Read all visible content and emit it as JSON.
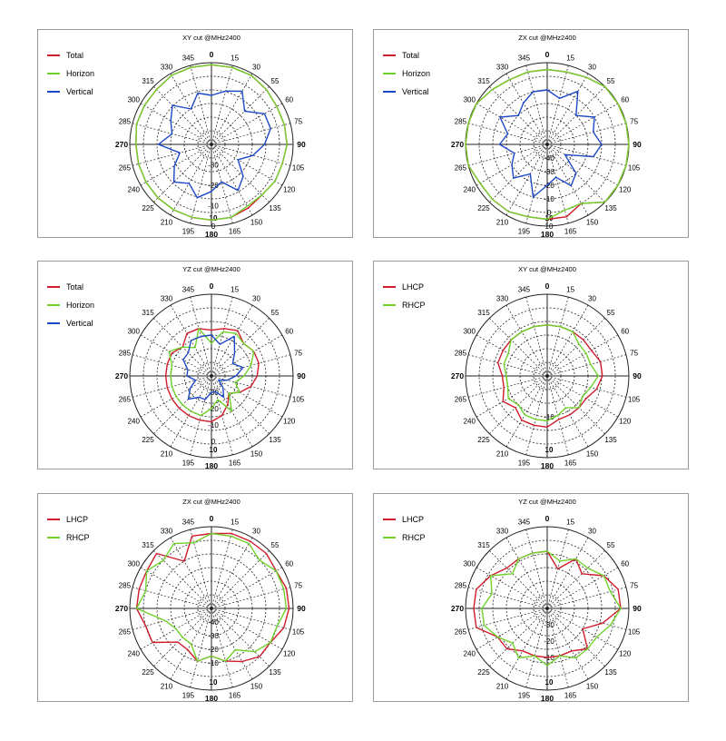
{
  "colors": {
    "red": "#d01c2c",
    "green": "#6fd22a",
    "blue": "#1c48c8"
  },
  "chart_data": [
    {
      "type": "polar-line",
      "title": "XY cut @MHz2400",
      "angle_labels": [
        "0",
        "15",
        "30",
        "55",
        "60",
        "75",
        "90",
        "105",
        "120",
        "135",
        "150",
        "165",
        "180",
        "195",
        "210",
        "225",
        "240",
        "265",
        "270",
        "285",
        "300",
        "315",
        "330",
        "345"
      ],
      "radial_labels": [
        "0",
        "-10",
        "-20",
        "-30"
      ],
      "radial_range": [
        -40,
        0
      ],
      "bottom_label": "10",
      "series": [
        {
          "name": "Total",
          "color": "red",
          "values": [
            -1,
            -1,
            -1,
            -2,
            -3,
            -3,
            -3,
            -4,
            -4,
            -5,
            -4,
            -3,
            -3,
            -3,
            -3,
            -3,
            -3,
            -3,
            -3,
            -2,
            -2,
            -2,
            -1,
            -1
          ]
        },
        {
          "name": "Horizon",
          "color": "green",
          "values": [
            -1,
            -1,
            -1,
            -2,
            -3,
            -3,
            -3,
            -4,
            -4,
            -5,
            -5,
            -3,
            -3,
            -3,
            -3,
            -3,
            -3,
            -3,
            -3,
            -2,
            -2,
            -2,
            -1,
            -1
          ]
        },
        {
          "name": "Vertical",
          "color": "blue",
          "values": [
            -16,
            -13,
            -10,
            -17,
            -10,
            -10,
            -14,
            -19,
            -25,
            -18,
            -14,
            -21,
            -17,
            -13,
            -18,
            -14,
            -19,
            -24,
            -14,
            -20,
            -17,
            -13,
            -20,
            -14
          ]
        }
      ]
    },
    {
      "type": "polar-line",
      "title": "ZX cut @MHz2400",
      "angle_labels": [
        "0",
        "15",
        "30",
        "55",
        "60",
        "75",
        "90",
        "105",
        "120",
        "135",
        "150",
        "165",
        "180",
        "195",
        "210",
        "225",
        "240",
        "265",
        "270",
        "285",
        "300",
        "315",
        "330",
        "345"
      ],
      "radial_labels": [
        "10",
        "0",
        "-10",
        "-20",
        "-30",
        "-40"
      ],
      "radial_range": [
        -50,
        10
      ],
      "bottom_label": "10",
      "series": [
        {
          "name": "Total",
          "color": "red",
          "values": [
            5,
            5,
            7,
            10,
            10,
            12,
            15,
            20,
            20,
            20,
            0,
            5,
            5,
            5,
            7,
            7,
            7,
            10,
            10,
            10,
            10,
            7,
            5,
            5
          ]
        },
        {
          "name": "Horizon",
          "color": "green",
          "values": [
            5,
            5,
            7,
            10,
            10,
            12,
            15,
            18,
            18,
            18,
            0,
            0,
            5,
            5,
            7,
            7,
            7,
            10,
            10,
            10,
            10,
            7,
            5,
            5
          ]
        },
        {
          "name": "Vertical",
          "color": "blue",
          "values": [
            -10,
            -15,
            -5,
            -20,
            -10,
            -15,
            -10,
            -15,
            -35,
            -20,
            -15,
            -25,
            -20,
            -10,
            -25,
            -15,
            -20,
            -25,
            -15,
            -20,
            -10,
            -20,
            -15,
            -10
          ]
        }
      ]
    },
    {
      "type": "polar-line",
      "title": "YZ cut @MHz2400",
      "angle_labels": [
        "0",
        "15",
        "30",
        "55",
        "60",
        "75",
        "90",
        "105",
        "120",
        "135",
        "150",
        "165",
        "180",
        "195",
        "210",
        "225",
        "240",
        "265",
        "270",
        "285",
        "300",
        "315",
        "330",
        "345"
      ],
      "radial_labels": [
        "0",
        "-10",
        "-20",
        "-30"
      ],
      "radial_range": [
        -40,
        10
      ],
      "bottom_label": "10",
      "series": [
        {
          "name": "Total",
          "color": "red",
          "values": [
            -12,
            -10,
            -8,
            -12,
            -10,
            -10,
            -12,
            -15,
            -20,
            -25,
            -20,
            -15,
            -12,
            -12,
            -12,
            -12,
            -12,
            -12,
            -12,
            -12,
            -12,
            -15,
            -10,
            -10
          ]
        },
        {
          "name": "Horizon",
          "color": "green",
          "values": [
            -20,
            -12,
            -10,
            -12,
            -10,
            -15,
            -20,
            -25,
            -20,
            -25,
            -15,
            -25,
            -20,
            -15,
            -15,
            -15,
            -15,
            -15,
            -15,
            -15,
            -10,
            -15,
            -20,
            -10
          ]
        },
        {
          "name": "Vertical",
          "color": "blue",
          "values": [
            -15,
            -20,
            -12,
            -20,
            -25,
            -20,
            -25,
            -30,
            -35,
            -30,
            -25,
            -30,
            -30,
            -25,
            -25,
            -20,
            -25,
            -30,
            -25,
            -25,
            -20,
            -20,
            -15,
            -15
          ]
        }
      ]
    },
    {
      "type": "polar-line",
      "title": "XY cut @MHz2400",
      "angle_labels": [
        "0",
        "15",
        "30",
        "55",
        "60",
        "75",
        "90",
        "105",
        "120",
        "135",
        "150",
        "165",
        "180",
        "195",
        "210",
        "225",
        "240",
        "265",
        "270",
        "285",
        "300",
        "315",
        "330",
        "345"
      ],
      "radial_labels": [
        "-10"
      ],
      "radial_range": [
        -30,
        10
      ],
      "bottom_label": "10",
      "series": [
        {
          "name": "LHCP",
          "color": "red",
          "values": [
            -5,
            -5,
            -5,
            -5,
            -5,
            -3,
            -3,
            -5,
            -8,
            -8,
            -8,
            -8,
            -5,
            -5,
            -5,
            -8,
            -5,
            -8,
            -8,
            -5,
            -5,
            -5,
            -5,
            -5
          ]
        },
        {
          "name": "RHCP",
          "color": "green",
          "values": [
            -5,
            -5,
            -5,
            -8,
            -8,
            -8,
            -5,
            -8,
            -10,
            -8,
            -12,
            -10,
            -8,
            -8,
            -8,
            -10,
            -8,
            -10,
            -10,
            -8,
            -8,
            -5,
            -5,
            -5
          ]
        }
      ]
    },
    {
      "type": "polar-line",
      "title": "ZX cut @MHz2400",
      "angle_labels": [
        "0",
        "15",
        "30",
        "55",
        "60",
        "75",
        "90",
        "105",
        "120",
        "135",
        "150",
        "165",
        "180",
        "195",
        "210",
        "225",
        "240",
        "265",
        "270",
        "285",
        "300",
        "315",
        "330",
        "345"
      ],
      "radial_labels": [
        "-40",
        "-30",
        "-20",
        "-10"
      ],
      "radial_range": [
        -50,
        10
      ],
      "bottom_label": "10",
      "series": [
        {
          "name": "LHCP",
          "color": "red",
          "values": [
            5,
            7,
            7,
            7,
            5,
            7,
            7,
            5,
            0,
            0,
            -5,
            -10,
            -15,
            -10,
            -15,
            -15,
            0,
            0,
            5,
            5,
            5,
            7,
            -10,
            5
          ]
        },
        {
          "name": "RHCP",
          "color": "green",
          "values": [
            5,
            5,
            5,
            0,
            5,
            5,
            5,
            0,
            0,
            -5,
            -15,
            -10,
            -15,
            -10,
            -20,
            -20,
            -20,
            -15,
            5,
            0,
            5,
            0,
            5,
            0
          ]
        }
      ]
    },
    {
      "type": "polar-line",
      "title": "YZ cut @MHz2400",
      "angle_labels": [
        "0",
        "15",
        "30",
        "55",
        "60",
        "75",
        "90",
        "105",
        "120",
        "135",
        "150",
        "165",
        "180",
        "195",
        "210",
        "225",
        "240",
        "265",
        "270",
        "285",
        "300",
        "315",
        "330",
        "345"
      ],
      "radial_labels": [
        "-30",
        "-20",
        "-10"
      ],
      "radial_range": [
        -40,
        10
      ],
      "bottom_label": "10",
      "series": [
        {
          "name": "LHCP",
          "color": "red",
          "values": [
            -5,
            -15,
            -5,
            -10,
            0,
            5,
            5,
            -5,
            -15,
            -5,
            -10,
            -10,
            -10,
            -10,
            -10,
            -5,
            -5,
            5,
            5,
            5,
            0,
            -5,
            -5,
            -5
          ]
        },
        {
          "name": "RHCP",
          "color": "green",
          "values": [
            -5,
            -10,
            -5,
            -5,
            0,
            0,
            5,
            0,
            -5,
            -5,
            -5,
            -10,
            -5,
            -10,
            -5,
            -10,
            -5,
            0,
            0,
            -5,
            0,
            -10,
            -5,
            -5
          ]
        }
      ]
    }
  ]
}
